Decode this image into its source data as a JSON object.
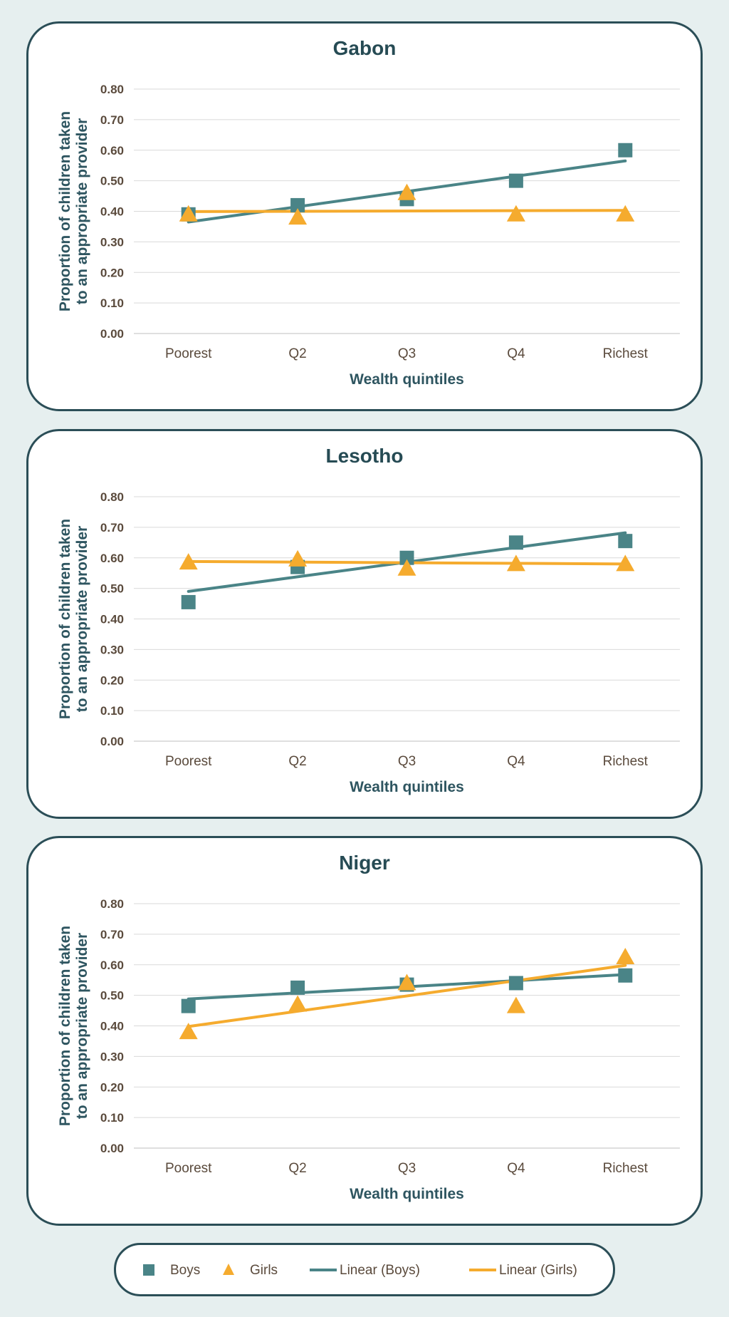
{
  "chart_data": [
    {
      "type": "scatter",
      "title": "Gabon",
      "xlabel": "Wealth quintiles",
      "ylabel": "Proportion of children taken to an appropriate provider",
      "categories": [
        "Poorest",
        "Q2",
        "Q3",
        "Q4",
        "Richest"
      ],
      "ylim": [
        0,
        0.8
      ],
      "yticks": [
        "0.00",
        "0.10",
        "0.20",
        "0.30",
        "0.40",
        "0.50",
        "0.60",
        "0.70",
        "0.80"
      ],
      "series": [
        {
          "name": "Boys",
          "values": [
            0.39,
            0.42,
            0.44,
            0.5,
            0.6
          ],
          "trend": [
            0.365,
            0.415,
            0.465,
            0.515,
            0.565
          ],
          "color": "#4a8487",
          "marker": "square"
        },
        {
          "name": "Girls",
          "values": [
            0.39,
            0.38,
            0.46,
            0.39,
            0.39
          ],
          "trend": [
            0.399,
            0.4,
            0.401,
            0.402,
            0.403
          ],
          "color": "#f5ab2e",
          "marker": "triangle"
        }
      ]
    },
    {
      "type": "scatter",
      "title": "Lesotho",
      "xlabel": "Wealth quintiles",
      "ylabel": "Proportion of children taken to an appropriate provider",
      "categories": [
        "Poorest",
        "Q2",
        "Q3",
        "Q4",
        "Richest"
      ],
      "ylim": [
        0,
        0.8
      ],
      "yticks": [
        "0.00",
        "0.10",
        "0.20",
        "0.30",
        "0.40",
        "0.50",
        "0.60",
        "0.70",
        "0.80"
      ],
      "series": [
        {
          "name": "Boys",
          "values": [
            0.455,
            0.57,
            0.6,
            0.65,
            0.655
          ],
          "trend": [
            0.49,
            0.538,
            0.586,
            0.634,
            0.682
          ],
          "color": "#4a8487",
          "marker": "square"
        },
        {
          "name": "Girls",
          "values": [
            0.585,
            0.595,
            0.565,
            0.58,
            0.58
          ],
          "trend": [
            0.588,
            0.586,
            0.584,
            0.582,
            0.58
          ],
          "color": "#f5ab2e",
          "marker": "triangle"
        }
      ]
    },
    {
      "type": "scatter",
      "title": "Niger",
      "xlabel": "Wealth quintiles",
      "ylabel": "Proportion of children taken to an appropriate provider",
      "categories": [
        "Poorest",
        "Q2",
        "Q3",
        "Q4",
        "Richest"
      ],
      "ylim": [
        0,
        0.8
      ],
      "yticks": [
        "0.00",
        "0.10",
        "0.20",
        "0.30",
        "0.40",
        "0.50",
        "0.60",
        "0.70",
        "0.80"
      ],
      "series": [
        {
          "name": "Boys",
          "values": [
            0.465,
            0.525,
            0.535,
            0.54,
            0.565
          ],
          "trend": [
            0.488,
            0.508,
            0.528,
            0.548,
            0.568
          ],
          "color": "#4a8487",
          "marker": "square"
        },
        {
          "name": "Girls",
          "values": [
            0.38,
            0.47,
            0.54,
            0.465,
            0.625
          ],
          "trend": [
            0.398,
            0.448,
            0.498,
            0.548,
            0.598
          ],
          "color": "#f5ab2e",
          "marker": "triangle"
        }
      ]
    }
  ],
  "legend": {
    "items": [
      {
        "label": "Boys",
        "kind": "square",
        "color": "#4a8487"
      },
      {
        "label": "Girls",
        "kind": "triangle",
        "color": "#f5ab2e"
      },
      {
        "label": "Linear (Boys)",
        "kind": "line",
        "color": "#4a8487"
      },
      {
        "label": "Linear (Girls)",
        "kind": "line",
        "color": "#f5ab2e"
      }
    ]
  },
  "colors": {
    "title": "#264b54",
    "axis_text": "#5a4a3c",
    "label": "#2e5560",
    "border": "#2b4e57"
  }
}
